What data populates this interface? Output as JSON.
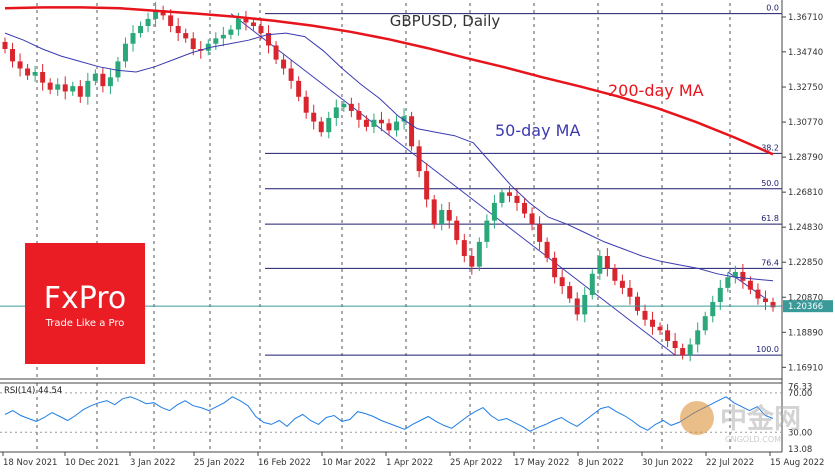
{
  "chart_data": {
    "type": "candlestick",
    "title": "GBPUSD, Daily",
    "date_axis_labels": [
      "18 Nov 2021",
      "10 Dec 2021",
      "3 Jan 2022",
      "25 Jan 2022",
      "16 Feb 2022",
      "10 Mar 2022",
      "1 Apr 2022",
      "25 Apr 2022",
      "17 May 2022",
      "8 Jun 2022",
      "30 Jun 2022",
      "22 Jul 2022",
      "15 Aug 2022"
    ],
    "price_ticks": [
      "1.36710",
      "1.34740",
      "1.32750",
      "1.30770",
      "1.28790",
      "1.26810",
      "1.24830",
      "1.22850",
      "1.20870",
      "1.18890",
      "1.16910"
    ],
    "ylim": [
      1.1625,
      1.375
    ],
    "current_price": "1.20366",
    "annotations": {
      "ma200": "200-day MA",
      "ma50": "50-day MA"
    },
    "fibonacci_levels": [
      {
        "label": "0.0",
        "price": 1.369
      },
      {
        "label": "38.2",
        "price": 1.29
      },
      {
        "label": "50.0",
        "price": 1.27
      },
      {
        "label": "61.8",
        "price": 1.25
      },
      {
        "label": "76.4",
        "price": 1.225
      },
      {
        "label": "100.0",
        "price": 1.176
      }
    ],
    "price_series": [
      1.349,
      1.342,
      1.338,
      1.334,
      1.336,
      1.33,
      1.326,
      1.329,
      1.325,
      1.328,
      1.322,
      1.331,
      1.335,
      1.328,
      1.333,
      1.342,
      1.352,
      1.358,
      1.362,
      1.366,
      1.371,
      1.368,
      1.362,
      1.358,
      1.355,
      1.349,
      1.348,
      1.352,
      1.355,
      1.357,
      1.36,
      1.366,
      1.364,
      1.362,
      1.358,
      1.351,
      1.343,
      1.338,
      1.331,
      1.322,
      1.313,
      1.308,
      1.302,
      1.31,
      1.316,
      1.318,
      1.314,
      1.309,
      1.305,
      1.309,
      1.307,
      1.303,
      1.308,
      1.311,
      1.294,
      1.28,
      1.264,
      1.25,
      1.258,
      1.252,
      1.241,
      1.232,
      1.226,
      1.24,
      1.252,
      1.262,
      1.268,
      1.266,
      1.262,
      1.256,
      1.25,
      1.24,
      1.231,
      1.22,
      1.215,
      1.208,
      1.199,
      1.21,
      1.222,
      1.232,
      1.225,
      1.218,
      1.214,
      1.209,
      1.201,
      1.196,
      1.192,
      1.19,
      1.184,
      1.18,
      1.176,
      1.182,
      1.19,
      1.198,
      1.206,
      1.214,
      1.22,
      1.223,
      1.218,
      1.213,
      1.208,
      1.206,
      1.203
    ],
    "ma50": [
      1.358,
      1.354,
      1.349,
      1.345,
      1.342,
      1.339,
      1.337,
      1.336,
      1.339,
      1.343,
      1.347,
      1.35,
      1.352,
      1.354,
      1.357,
      1.358,
      1.356,
      1.348,
      1.338,
      1.329,
      1.321,
      1.311,
      1.304,
      1.302,
      1.3,
      1.296,
      1.284,
      1.272,
      1.262,
      1.254,
      1.25,
      1.245,
      1.24,
      1.236,
      1.232,
      1.229,
      1.227,
      1.225,
      1.222,
      1.22,
      1.219,
      1.218
    ],
    "ma200": [
      1.372,
      1.3725,
      1.3725,
      1.372,
      1.3705,
      1.369,
      1.3672,
      1.365,
      1.3622,
      1.3587,
      1.3545,
      1.3495,
      1.344,
      1.3387,
      1.333,
      1.3277,
      1.322,
      1.3155,
      1.3077,
      1.299,
      1.2895
    ],
    "rsi": {
      "label": "RSI(14) 44.54",
      "ticks": [
        "76.33",
        "70.00",
        "30.00",
        "13.08"
      ],
      "ylim": [
        10,
        80
      ],
      "values": [
        48,
        52,
        47,
        44,
        41,
        45,
        50,
        46,
        42,
        47,
        53,
        57,
        60,
        62,
        58,
        64,
        66,
        63,
        59,
        60,
        55,
        52,
        58,
        62,
        57,
        55,
        52,
        56,
        60,
        66,
        62,
        57,
        46,
        40,
        38,
        42,
        36,
        44,
        48,
        42,
        38,
        45,
        47,
        41,
        43,
        51,
        49,
        46,
        42,
        39,
        36,
        33,
        38,
        42,
        46,
        41,
        37,
        34,
        40,
        46,
        51,
        55,
        47,
        42,
        44,
        40,
        36,
        31,
        35,
        38,
        42,
        45,
        40,
        36,
        42,
        48,
        54,
        56,
        51,
        47,
        42,
        36,
        32,
        38,
        42,
        37,
        40,
        45,
        50,
        54,
        58,
        62,
        66,
        60,
        56,
        52,
        56,
        47,
        44
      ]
    }
  },
  "branding": {
    "fxpro_logo": "FxPro",
    "fxpro_tagline": "Trade Like a Pro",
    "watermark_text": "中金网",
    "watermark_sub": "CNGOLD.COM",
    "colors": {
      "ma200": "#e8141b",
      "ma50": "#3a3ab0",
      "bull": "#2aa87a",
      "bear": "#d9262e",
      "fib": "#1c1c6e",
      "logo_bg": "#ea1c24"
    }
  }
}
